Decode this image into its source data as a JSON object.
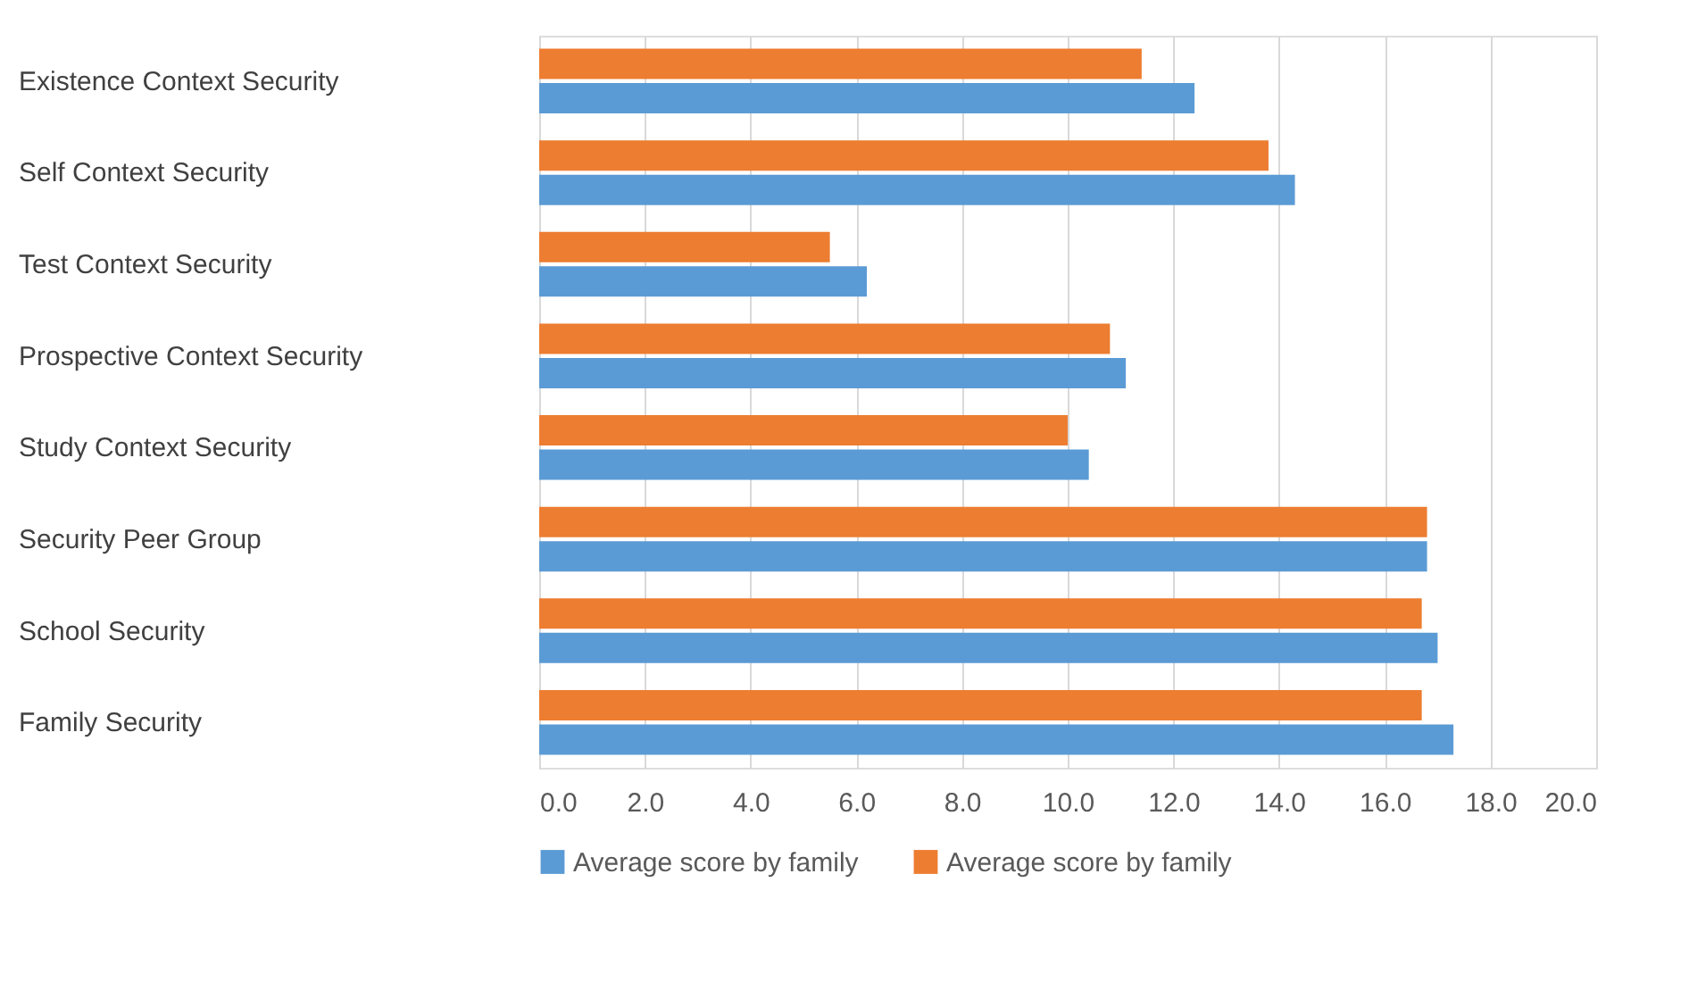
{
  "chart_data": {
    "type": "bar",
    "orientation": "horizontal",
    "categories": [
      "Existence Context Security",
      "Self Context Security",
      "Test Context Security",
      "Prospective Context Security",
      "Study Context Security",
      "Security Peer Group",
      "School Security",
      "Family Security"
    ],
    "series": [
      {
        "name": "Average score by family",
        "color": "#5b9bd5",
        "values": [
          12.4,
          14.3,
          6.2,
          11.1,
          10.4,
          16.8,
          17.0,
          17.3
        ]
      },
      {
        "name": "Average score by family",
        "color": "#ed7d31",
        "values": [
          11.4,
          13.8,
          5.5,
          10.8,
          10.0,
          16.8,
          16.7,
          16.7
        ]
      }
    ],
    "xlim": [
      0,
      20
    ],
    "xticks": [
      {
        "value": 0,
        "label": "0.0"
      },
      {
        "value": 2,
        "label": "2.0"
      },
      {
        "value": 4,
        "label": "4.0"
      },
      {
        "value": 6,
        "label": "6.0"
      },
      {
        "value": 8,
        "label": "8.0"
      },
      {
        "value": 10,
        "label": "10.0"
      },
      {
        "value": 12,
        "label": "12.0"
      },
      {
        "value": 14,
        "label": "14.0"
      },
      {
        "value": 16,
        "label": "16.0"
      },
      {
        "value": 18,
        "label": "18.0"
      },
      {
        "value": 20,
        "label": "20.0"
      }
    ],
    "grid": "x",
    "legend": "bottom"
  }
}
